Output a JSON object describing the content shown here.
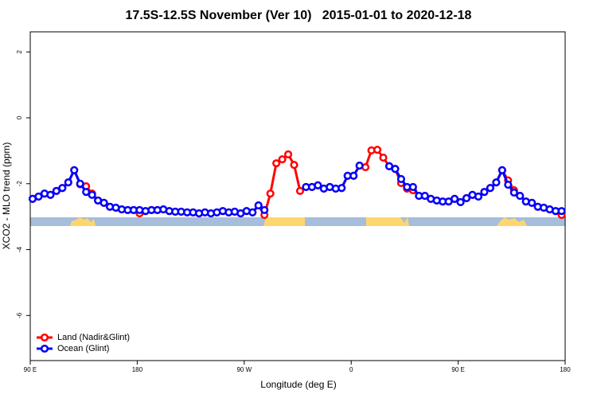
{
  "chart_data": {
    "type": "line",
    "title": "17.5S-12.5S November (Ver 10)   2015-01-01 to 2020-12-18",
    "x_label": "Longitude (deg E)",
    "y_label": "XCO2 - MLO trend (ppm)",
    "x": [
      92,
      97,
      102,
      107,
      112,
      117,
      122,
      127,
      132,
      137,
      142,
      147,
      152,
      157,
      162,
      167,
      172,
      177,
      182,
      187,
      192,
      197,
      202,
      207,
      212,
      217,
      222,
      227,
      232,
      237,
      242,
      247,
      252,
      257,
      262,
      267,
      272,
      277,
      282,
      287,
      292,
      297,
      302,
      307,
      312,
      317,
      322,
      327,
      332,
      337,
      342,
      347,
      352,
      357,
      362,
      367,
      372,
      377,
      382,
      387,
      392,
      397,
      402,
      407,
      412,
      417,
      422,
      427,
      432,
      437,
      442,
      447,
      452,
      457,
      462,
      467,
      472,
      477,
      482,
      487,
      492,
      497,
      502,
      507,
      512,
      517,
      522,
      527,
      532,
      537
    ],
    "series": [
      {
        "name": "Land (Nadir&Glint)",
        "color": "#ff0000",
        "values": [
          -2.46,
          -2.39,
          -2.3,
          -2.34,
          -2.22,
          -2.13,
          -1.96,
          -1.59,
          -2.02,
          -2.08,
          -2.3,
          -2.51,
          -2.58,
          -2.7,
          -2.73,
          -2.78,
          -2.8,
          -2.8,
          -2.9,
          -2.83,
          -2.8,
          -2.8,
          -2.78,
          -2.83,
          -2.85,
          -2.85,
          -2.87,
          -2.87,
          -2.9,
          -2.87,
          -2.9,
          -2.87,
          -2.83,
          -2.87,
          -2.85,
          -2.9,
          -2.83,
          -2.87,
          -2.66,
          -2.95,
          -2.3,
          -1.38,
          -1.26,
          -1.11,
          -1.43,
          -2.22,
          -2.1,
          -2.1,
          -2.05,
          -2.15,
          -2.1,
          -2.15,
          -2.13,
          -1.76,
          -1.76,
          -1.45,
          -1.5,
          -0.99,
          -0.97,
          -1.21,
          -1.47,
          -1.55,
          -1.98,
          -2.15,
          -2.2,
          -2.37,
          -2.37,
          -2.46,
          -2.51,
          -2.54,
          -2.54,
          -2.46,
          -2.56,
          -2.44,
          -2.34,
          -2.39,
          -2.25,
          -2.13,
          -1.96,
          -1.59,
          -1.9,
          -2.2,
          -2.37,
          -2.54,
          -2.58,
          -2.7,
          -2.73,
          -2.78,
          -2.83,
          -2.95
        ]
      },
      {
        "name": "Ocean (Glint)",
        "color": "#0000ff",
        "values": [
          -2.46,
          -2.39,
          -2.3,
          -2.34,
          -2.22,
          -2.13,
          -1.96,
          -1.59,
          -2.0,
          -2.25,
          -2.34,
          -2.51,
          -2.58,
          -2.7,
          -2.73,
          -2.78,
          -2.8,
          -2.8,
          -2.8,
          -2.83,
          -2.8,
          -2.8,
          -2.78,
          -2.83,
          -2.85,
          -2.85,
          -2.87,
          -2.87,
          -2.9,
          -2.87,
          -2.9,
          -2.87,
          -2.83,
          -2.87,
          -2.85,
          -2.9,
          -2.83,
          -2.87,
          -2.66,
          -2.8,
          null,
          null,
          null,
          null,
          null,
          null,
          -2.1,
          -2.1,
          -2.05,
          -2.15,
          -2.1,
          -2.15,
          -2.13,
          -1.76,
          -1.76,
          -1.45,
          null,
          null,
          null,
          null,
          -1.47,
          -1.55,
          -1.86,
          -2.1,
          -2.1,
          -2.37,
          -2.37,
          -2.46,
          -2.51,
          -2.54,
          -2.54,
          -2.46,
          -2.56,
          -2.44,
          -2.34,
          -2.39,
          -2.25,
          -2.13,
          -1.96,
          -1.59,
          -2.03,
          -2.27,
          -2.37,
          -2.54,
          -2.58,
          -2.7,
          -2.73,
          -2.78,
          -2.83,
          -2.83
        ]
      }
    ],
    "xlim": [
      90,
      540
    ],
    "xticks": [
      {
        "value": 90,
        "label": "90 E"
      },
      {
        "value": 180,
        "label": "180"
      },
      {
        "value": 270,
        "label": "90 W"
      },
      {
        "value": 360,
        "label": "0"
      },
      {
        "value": 450,
        "label": "90 E"
      },
      {
        "value": 540,
        "label": "180"
      }
    ],
    "ylim": [
      -7.37,
      2.61
    ],
    "yticks": [
      2,
      0,
      -2,
      -4,
      -6
    ],
    "legend": "bottom left"
  }
}
